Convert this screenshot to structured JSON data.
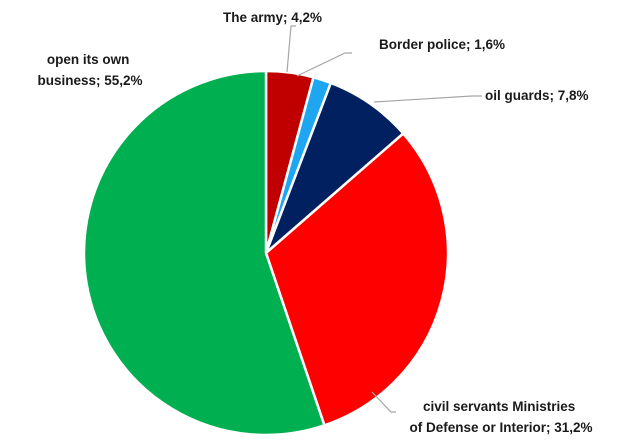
{
  "chart_data": {
    "type": "pie",
    "slices": [
      {
        "label": "The army; 4,2%",
        "value": 4.2,
        "color": "#c00000"
      },
      {
        "label": "Border police; 1,6%",
        "value": 1.6,
        "color": "#1ea7f0"
      },
      {
        "label": "oil guards; 7,8%",
        "value": 7.8,
        "color": "#002060"
      },
      {
        "label": "civil servants Ministries of Defense or Interior; 31,2%",
        "value": 31.2,
        "color": "#ff0000"
      },
      {
        "label": "open its own business; 55,2%",
        "value": 55.2,
        "color": "#00b050"
      }
    ],
    "start": "top",
    "direction": "clockwise",
    "legend": "none",
    "data_labels": "outside with leader lines"
  }
}
